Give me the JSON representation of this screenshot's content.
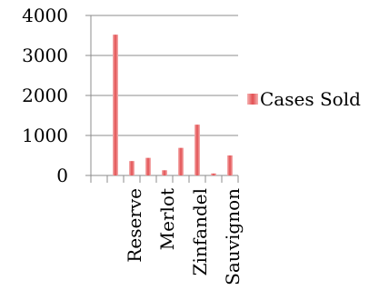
{
  "chart_data": {
    "type": "bar",
    "categories": [
      "",
      "Reserve",
      "",
      "Merlot",
      "",
      "Zinfandel",
      "",
      "Sauvignon"
    ],
    "series": [
      {
        "name": "Cases Sold",
        "values": [
          3520,
          360,
          440,
          130,
          690,
          1270,
          50,
          500
        ],
        "color": "#e8585a"
      }
    ],
    "yticks": [
      0,
      1000,
      2000,
      3000,
      4000
    ],
    "ylim": [
      0,
      4000
    ],
    "grid": true,
    "legend": "right"
  }
}
